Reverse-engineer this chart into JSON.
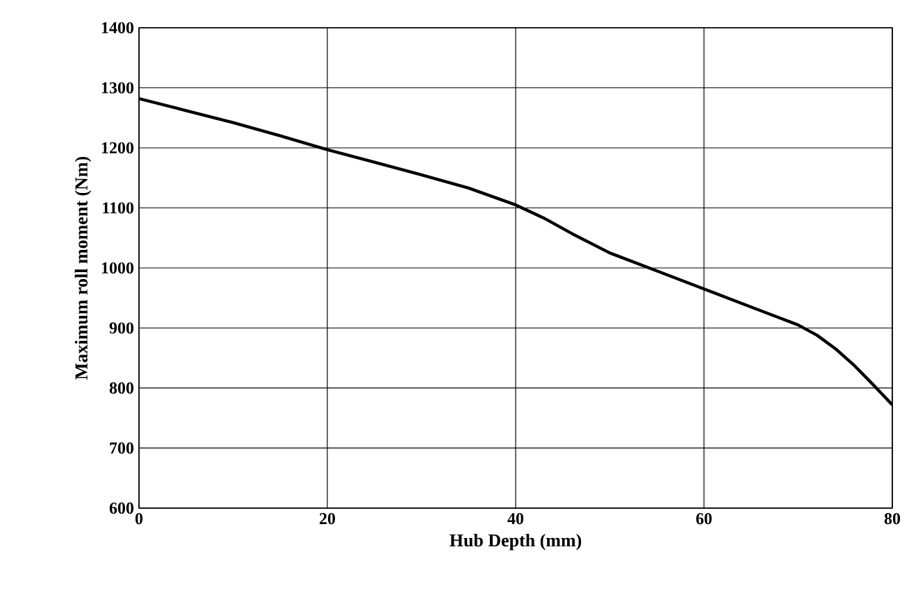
{
  "chart_data": {
    "type": "line",
    "xlabel": "Hub Depth (mm)",
    "ylabel": "Maximum roll moment (Nm)",
    "x": [
      0,
      5,
      10,
      15,
      20,
      25,
      30,
      35,
      40,
      43,
      46,
      50,
      55,
      60,
      65,
      68,
      70,
      72,
      74,
      76,
      78,
      80
    ],
    "series": [
      {
        "color": "#000000",
        "values": [
          1282,
          1262,
          1242,
          1220,
          1197,
          1176,
          1155,
          1133,
          1105,
          1083,
          1057,
          1025,
          995,
          965,
          935,
          917,
          905,
          888,
          865,
          837,
          805,
          772
        ]
      }
    ],
    "xlim": [
      0,
      80
    ],
    "ylim": [
      600,
      1400
    ],
    "xticks": [
      0,
      20,
      40,
      60,
      80
    ],
    "yticks": [
      600,
      700,
      800,
      900,
      1000,
      1100,
      1200,
      1300,
      1400
    ],
    "grid": true,
    "marker": "none",
    "line_style": "solid"
  }
}
